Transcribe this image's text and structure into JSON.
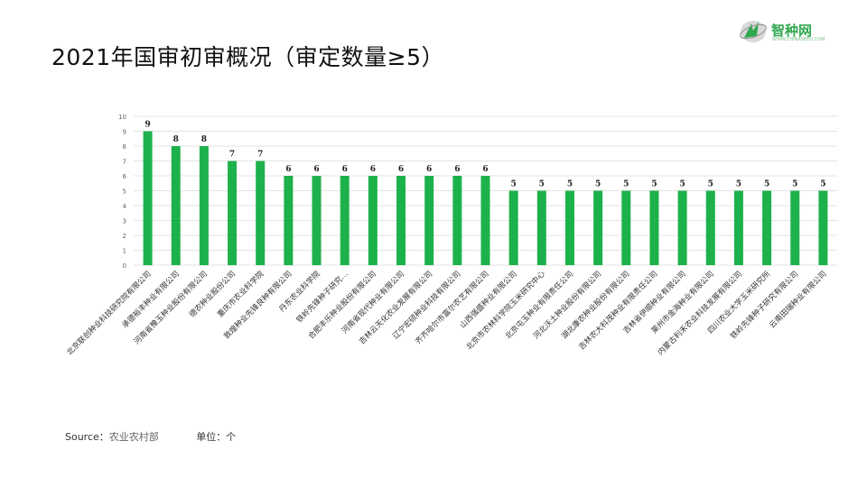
{
  "page": {
    "title": "2021年国审初审概况（审定数量≥5）",
    "logo": {
      "name": "智种网",
      "sub": "WWW.CHINASEED.COM"
    },
    "source_label": "Source：",
    "source_value": "农业农村部",
    "unit_label": "单位：个"
  },
  "colors": {
    "bar": "#1db14b",
    "grid": "#e3e3e3",
    "axis_text": "#666666"
  },
  "chart_data": {
    "type": "bar",
    "title": "",
    "xlabel": "",
    "ylabel": "",
    "ylim": [
      0,
      10
    ],
    "yticks": [
      0,
      1,
      2,
      3,
      4,
      5,
      6,
      7,
      8,
      9,
      10
    ],
    "grid": true,
    "data_labels": true,
    "categories": [
      "北京联创种业科技研究院有限公司",
      "承德裕丰种业有限公司",
      "河南省豫玉种业股份有限公司",
      "德农种业股份公司",
      "重庆市农业科学院",
      "敦煌种业先锋良种有限公司",
      "丹东农业科学院",
      "铁岭先锋种子研究…",
      "合肥丰乐种业股份有限公司",
      "河南省现代种业有限公司",
      "吉林云天化农业发展有限公司",
      "辽宁宏硕种业科技有限公司",
      "齐齐哈尔市富尔农艺有限公司",
      "山西强盛种业有限公司",
      "北京市农林科学院玉米研究中心",
      "北京屯玉种业有限责任公司",
      "河北沃土种业股份有限公司",
      "湖北康农种业股份有限公司",
      "吉林农大科茂种业有限责任公司",
      "吉林省伊顺种业有限公司",
      "莱州市金海种业有限公司",
      "内蒙古利禾农业科技发展有限公司",
      "四川农业大学玉米研究所",
      "铁岭先锋种子研究有限公司",
      "云南田瑞种业有限公司"
    ],
    "values": [
      9,
      8,
      8,
      7,
      7,
      6,
      6,
      6,
      6,
      6,
      6,
      6,
      6,
      5,
      5,
      5,
      5,
      5,
      5,
      5,
      5,
      5,
      5,
      5,
      5
    ]
  }
}
